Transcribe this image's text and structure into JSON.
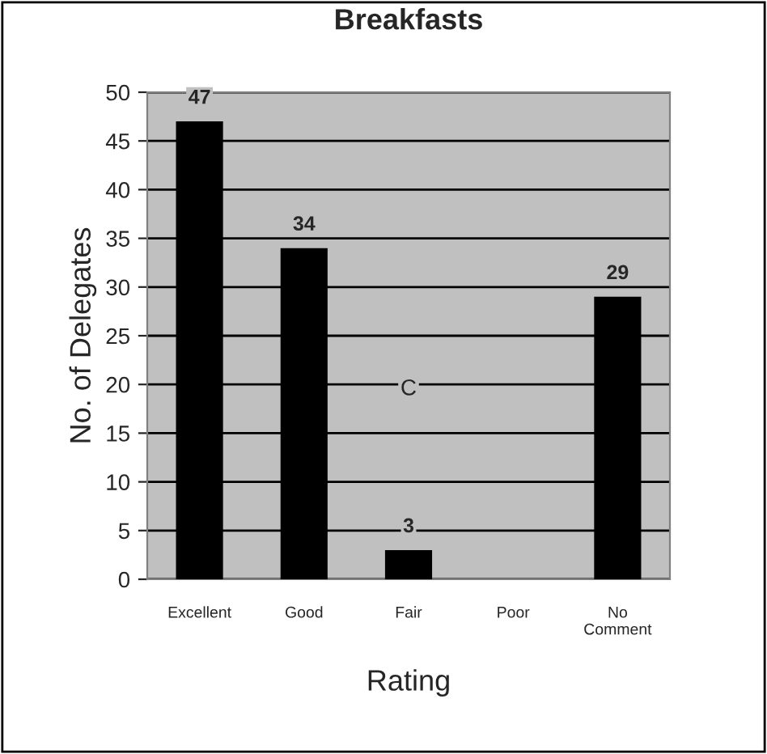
{
  "chart_data": {
    "type": "bar",
    "title": "Breakfasts",
    "xlabel": "Rating",
    "ylabel": "No. of Delegates",
    "categories": [
      "Excellent",
      "Good",
      "Fair",
      "Poor",
      "No\nComment"
    ],
    "values": [
      47,
      34,
      3,
      0,
      29
    ],
    "color": "#000000",
    "value_labels": [
      "47",
      "34",
      "3",
      null,
      "29"
    ],
    "ylim": [
      0,
      50
    ],
    "yticks": [
      0,
      5,
      10,
      15,
      20,
      25,
      30,
      35,
      40,
      45,
      50
    ],
    "grid": "y",
    "annotations": [
      "C"
    ]
  }
}
